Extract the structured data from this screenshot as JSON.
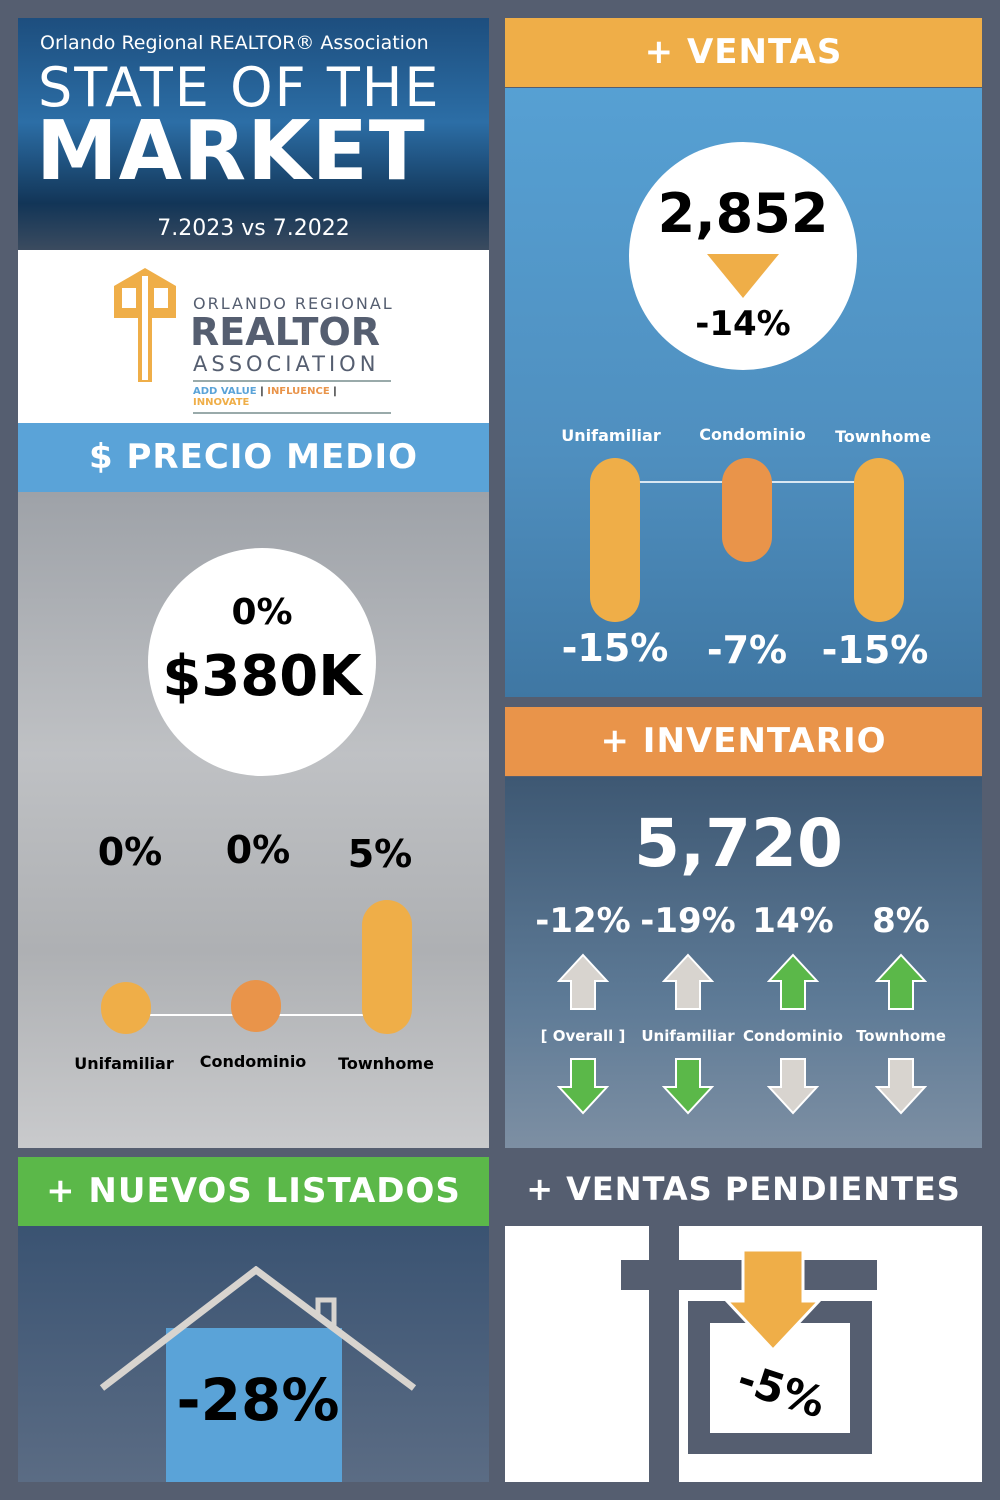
{
  "header": {
    "org": "Orlando Regional REALTOR® Association",
    "title_line1": "STATE OF THE",
    "title_line2": "MARKET",
    "period": "7.2023 vs 7.2022"
  },
  "logo": {
    "line1": "ORLANDO REGIONAL",
    "line2": "REALTOR",
    "line3": "ASSOCIATION",
    "tag1": "ADD VALUE",
    "tag2": "INFLUENCE",
    "tag3": "INNOVATE"
  },
  "precio": {
    "title": "$ PRECIO MEDIO",
    "change": "0%",
    "value": "$380K",
    "items": [
      {
        "label": "Unifamiliar",
        "change": "0%"
      },
      {
        "label": "Condominio",
        "change": "0%"
      },
      {
        "label": "Townhome",
        "change": "5%"
      }
    ]
  },
  "ventas": {
    "title": "+ VENTAS",
    "value": "2,852",
    "change": "-14%",
    "items": [
      {
        "label": "Unifamiliar",
        "change": "-15%"
      },
      {
        "label": "Condominio",
        "change": "-7%"
      },
      {
        "label": "Townhome",
        "change": "-15%"
      }
    ]
  },
  "inventario": {
    "title": "+ INVENTARIO",
    "value": "5,720",
    "items": [
      {
        "label": "[ Overall ]",
        "change": "-12%",
        "direction": "down"
      },
      {
        "label": "Unifamiliar",
        "change": "-19%",
        "direction": "down"
      },
      {
        "label": "Condominio",
        "change": "14%",
        "direction": "up"
      },
      {
        "label": "Townhome",
        "change": "8%",
        "direction": "up"
      }
    ]
  },
  "listados": {
    "title": "+ NUEVOS LISTADOS",
    "change": "-28%"
  },
  "pendientes": {
    "title": "+ VENTAS PENDIENTES",
    "change": "-5%"
  },
  "colors": {
    "background": "#555e70",
    "orange": "#efae48",
    "dark_orange": "#e9944a",
    "blue": "#5aa3d8",
    "green": "#5bb849",
    "arrow_gray": "#d8d4cf"
  }
}
